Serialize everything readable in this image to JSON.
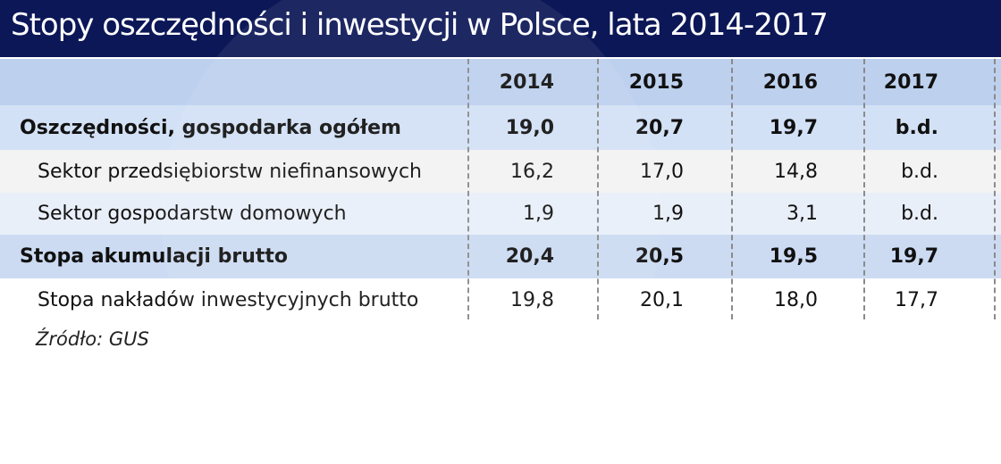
{
  "title": "Stopy oszczędności i inwestycji w Polsce, lata 2014-2017",
  "chart_data": {
    "type": "table",
    "columns": [
      "2014",
      "2015",
      "2016",
      "2017"
    ],
    "rows": [
      {
        "label": "Oszczędności, gospodarka ogółem",
        "bold": true,
        "values": [
          "19,0",
          "20,7",
          "19,7",
          "b.d."
        ]
      },
      {
        "label": "Sektor przedsiębiorstw niefinansowych",
        "bold": false,
        "values": [
          "16,2",
          "17,0",
          "14,8",
          "b.d."
        ]
      },
      {
        "label": "Sektor gospodarstw domowych",
        "bold": false,
        "values": [
          "1,9",
          "1,9",
          "3,1",
          "b.d."
        ]
      },
      {
        "label": "Stopa akumulacji brutto",
        "bold": true,
        "values": [
          "20,4",
          "20,5",
          "19,5",
          "19,7"
        ]
      },
      {
        "label": "Stopa nakładów inwestycyjnych brutto",
        "bold": false,
        "values": [
          "19,8",
          "20,1",
          "18,0",
          "17,7"
        ]
      }
    ]
  },
  "source": "Źródło: GUS",
  "colors": {
    "title_bg": "#0c1757",
    "header_bg": "#bdd0ee",
    "row_bgs": [
      "#d3e1f6",
      "#f3f3f3",
      "#e9eff9",
      "#ccdbf2",
      "#ffffff"
    ]
  }
}
